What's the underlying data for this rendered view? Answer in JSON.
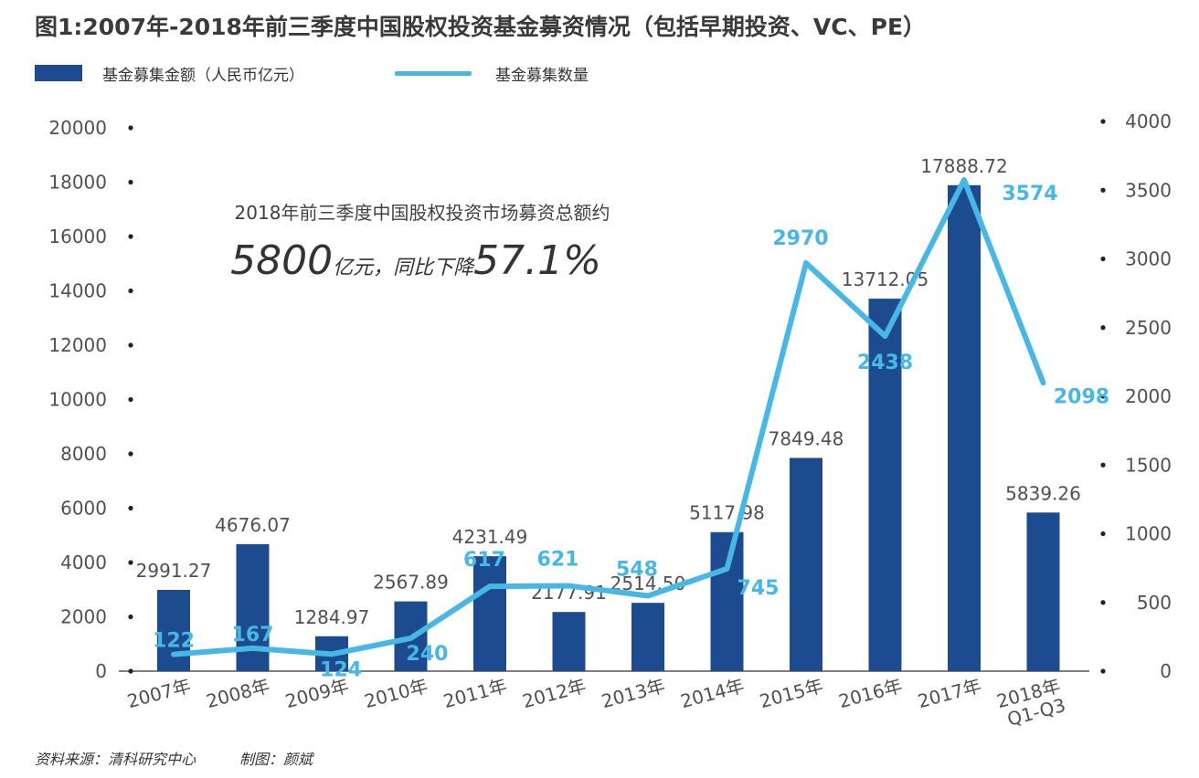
{
  "title": "图1:2007年-2018年前三季度中国股权投资基金募资情况（包括早期投资、VC、PE）",
  "legend": {
    "bars": "基金募集金额（人民币亿元）",
    "line": "基金募集数量"
  },
  "annotation": {
    "line1": "2018年前三季度中国股权投资市场募资总额约",
    "big1": "5800",
    "mid": "亿元，同比下降",
    "big2": "57.1%"
  },
  "source": {
    "data": "资料来源：清科研究中心",
    "made_by": "制图：颜斌"
  },
  "colors": {
    "bar": "#1d4b8f",
    "line": "#47b8e6",
    "text": "#505050"
  },
  "chart_data": {
    "type": "bar",
    "categories": [
      "2007年",
      "2008年",
      "2009年",
      "2010年",
      "2011年",
      "2012年",
      "2013年",
      "2014年",
      "2015年",
      "2016年",
      "2017年",
      "2018年\nQ1-Q3"
    ],
    "series": [
      {
        "name": "基金募集金额（人民币亿元）",
        "type": "bar",
        "axis": "left",
        "values": [
          2991.27,
          4676.07,
          1284.97,
          2567.89,
          4231.49,
          2177.91,
          2514.5,
          5117.98,
          7849.48,
          13712.05,
          17888.72,
          5839.26
        ],
        "labels": [
          "2991.27",
          "4676.07",
          "1284.97",
          "2567.89",
          "4231.49",
          "2177.91",
          "2514.50",
          "5117.98",
          "7849.48",
          "13712.05",
          "17888.72",
          "5839.26"
        ]
      },
      {
        "name": "基金募集数量",
        "type": "line",
        "axis": "right",
        "values": [
          122,
          167,
          124,
          240,
          617,
          621,
          548,
          745,
          2970,
          2438,
          3574,
          2098
        ],
        "labels": [
          "122",
          "167",
          "124",
          "240",
          "617",
          "621",
          "548",
          "745",
          "2970",
          "2438",
          "3574",
          "2098"
        ]
      }
    ],
    "y_left": {
      "min": 0,
      "max": 20000,
      "ticks": [
        "0",
        "2000",
        "4000",
        "6000",
        "8000",
        "10000",
        "12000",
        "14000",
        "16000",
        "18000",
        "20000"
      ]
    },
    "y_right": {
      "min": 0,
      "max": 4000,
      "ticks": [
        "0",
        "500",
        "1000",
        "1500",
        "2000",
        "2500",
        "3000",
        "3500",
        "4000"
      ]
    },
    "grid": false
  }
}
